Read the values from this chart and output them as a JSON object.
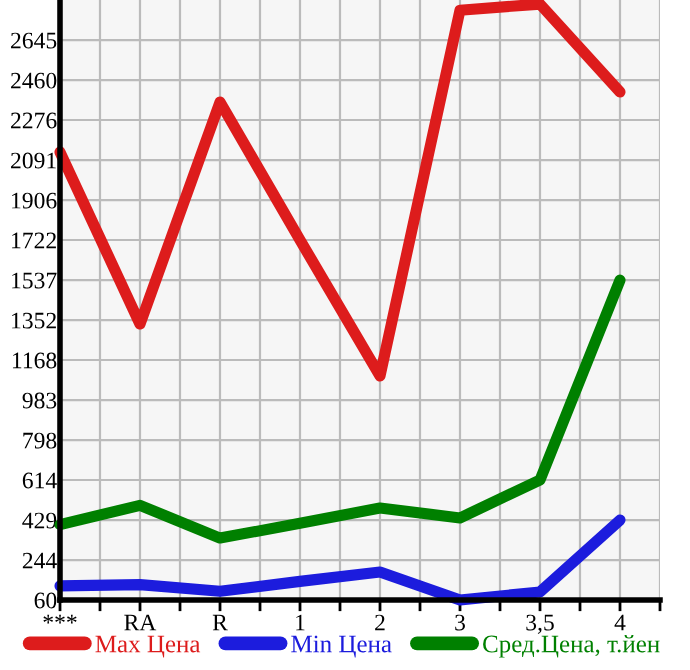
{
  "chart_data": {
    "type": "line",
    "categories": [
      "***",
      "RA",
      "R",
      "1",
      "2",
      "3",
      "3,5",
      "4"
    ],
    "series": [
      {
        "name": "Max Цена",
        "color": "#dd1c1c",
        "values": [
          2128,
          1334,
          2359,
          1722,
          1094,
          2783,
          2811,
          2405
        ]
      },
      {
        "name": "Min Цена",
        "color": "#1c1cdd",
        "values": [
          125,
          131,
          100,
          146,
          189,
          60,
          97,
          429
        ]
      },
      {
        "name": "Сред.Цена, т.йен",
        "color": "#008000",
        "values": [
          408,
          497,
          346,
          414,
          485,
          439,
          614,
          1537
        ]
      }
    ],
    "ylim": [
      60,
      2830
    ],
    "yticks": [
      60,
      244,
      429,
      614,
      798,
      983,
      1168,
      1352,
      1537,
      1722,
      1906,
      2091,
      2276,
      2460,
      2645
    ],
    "grid": true,
    "legend": "bottom",
    "marker": "none",
    "line_style": "solid"
  }
}
